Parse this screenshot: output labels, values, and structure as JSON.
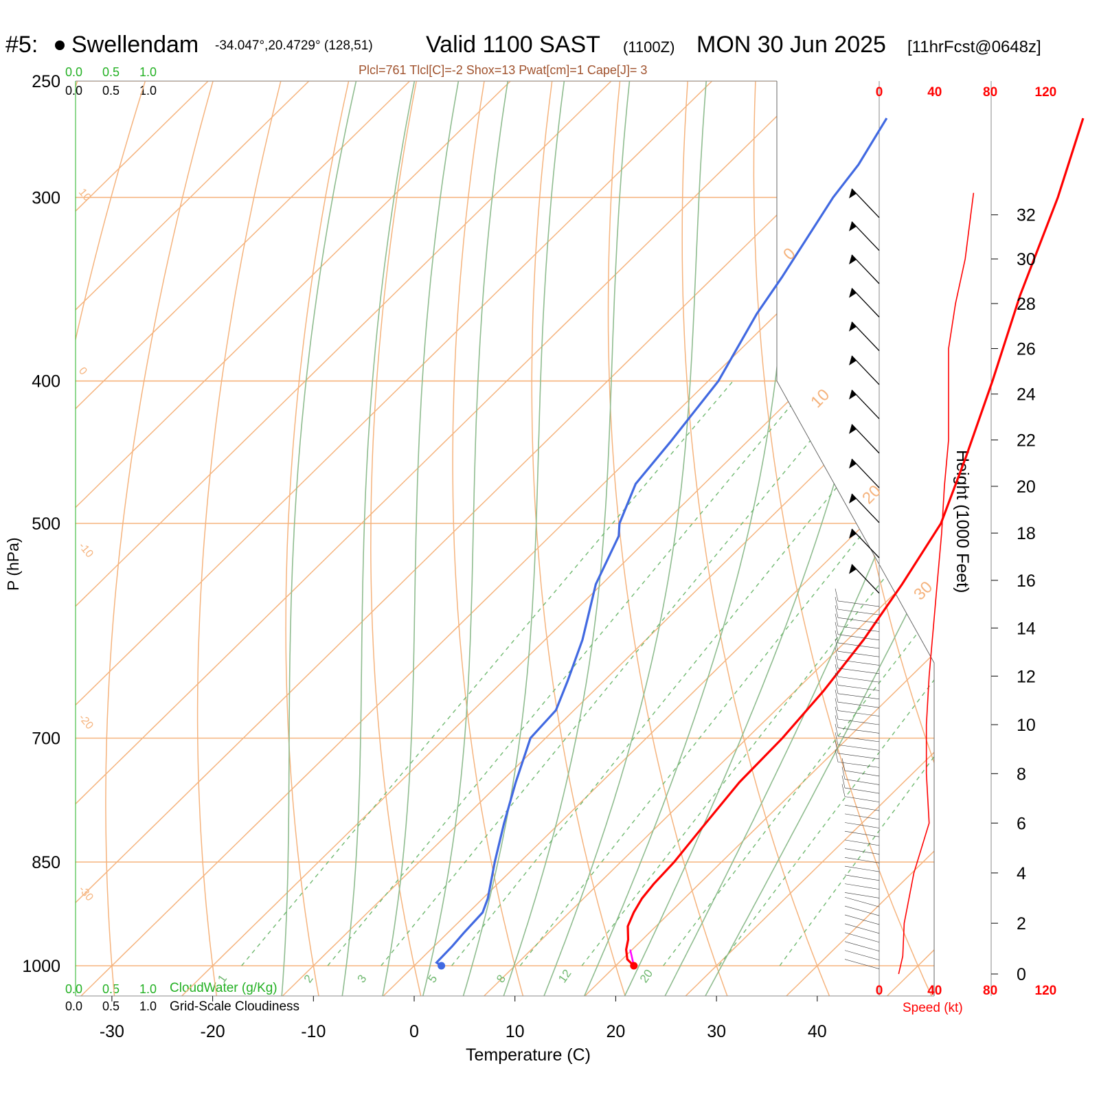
{
  "header": {
    "station_num": "#5:",
    "station_name": "Swellendam",
    "coords": "-34.047°,20.4729° (128,51)",
    "valid": "Valid 1100 SAST",
    "zulu": "(1100Z)",
    "date": "MON 30 Jun 2025",
    "fcst": "[11hrFcst@0648z]",
    "indices": "Plcl=761 Tlcl[C]=-2 Shox=13 Pwat[cm]=1 Cape[J]= 3"
  },
  "bottom_legend": {
    "cloud_scale": [
      "0.0",
      "0.5",
      "1.0"
    ],
    "cloud_water": "CloudWater (g/Kg)",
    "cloudiness": "Grid-Scale Cloudiness",
    "speed_label": "Speed (kt)"
  },
  "colors": {
    "isotherm": "#f5b37d",
    "dry_adiabat": "#f5b37d",
    "moist_adiabat": "#8fbc8f",
    "mixing_ratio": "#6fb86f",
    "temperature": "#ff0000",
    "dewpoint": "#4169e1",
    "parcel": "#ff00ff",
    "wind_speed": "#ff0000",
    "barbs": "#000000"
  },
  "chart_data": {
    "type": "skew-t",
    "xlabel": "Temperature (C)",
    "ylabel": "P (hPa)",
    "y2label": "Height (1000 Feet)",
    "x_ticks": [
      -30,
      -20,
      -10,
      0,
      10,
      20,
      30,
      40
    ],
    "p_levels": [
      250,
      300,
      400,
      500,
      700,
      850,
      1000
    ],
    "height_ticks": [
      0,
      2,
      4,
      6,
      8,
      10,
      12,
      14,
      16,
      18,
      20,
      22,
      24,
      26,
      28,
      30,
      32
    ],
    "wind_speed_ticks": [
      0,
      40,
      80,
      120
    ],
    "skewed_isotherm_labels": [
      {
        "label": "10",
        "side": "left"
      },
      {
        "label": "0",
        "side": "left"
      },
      {
        "label": "-10",
        "side": "left"
      },
      {
        "label": "-20",
        "side": "left"
      },
      {
        "label": "-30",
        "side": "left"
      },
      {
        "label": "0",
        "side": "right"
      },
      {
        "label": "10",
        "side": "right"
      },
      {
        "label": "20",
        "side": "right"
      },
      {
        "label": "30",
        "side": "right"
      }
    ],
    "mixing_ratio_labels": [
      "1",
      "2",
      "3",
      "5",
      "8",
      "12",
      "20"
    ],
    "temperature_profile": [
      [
        1000,
        21.8
      ],
      [
        990,
        20.5
      ],
      [
        975,
        19.4
      ],
      [
        960,
        18.6
      ],
      [
        940,
        17.2
      ],
      [
        920,
        16.4
      ],
      [
        900,
        15.8
      ],
      [
        880,
        15.5
      ],
      [
        850,
        15.3
      ],
      [
        800,
        14.5
      ],
      [
        750,
        13.7
      ],
      [
        700,
        13.5
      ],
      [
        650,
        12.8
      ],
      [
        600,
        11.6
      ],
      [
        550,
        9.8
      ],
      [
        500,
        7.5
      ],
      [
        450,
        3.2
      ],
      [
        400,
        -1.8
      ],
      [
        350,
        -7.7
      ],
      [
        300,
        -13.9
      ],
      [
        265,
        -19.4
      ]
    ],
    "dewpoint_profile": [
      [
        1000,
        2.7
      ],
      [
        995,
        1.9
      ],
      [
        970,
        1.8
      ],
      [
        950,
        1.6
      ],
      [
        920,
        1.4
      ],
      [
        900,
        0.5
      ],
      [
        850,
        -2.5
      ],
      [
        800,
        -5.5
      ],
      [
        750,
        -8.5
      ],
      [
        700,
        -11.5
      ],
      [
        670,
        -11.8
      ],
      [
        640,
        -13.6
      ],
      [
        600,
        -16.3
      ],
      [
        550,
        -20.6
      ],
      [
        510,
        -23.2
      ],
      [
        500,
        -24.4
      ],
      [
        470,
        -26.8
      ],
      [
        440,
        -27.6
      ],
      [
        400,
        -29.0
      ],
      [
        360,
        -32.0
      ],
      [
        340,
        -33.2
      ],
      [
        300,
        -36.2
      ],
      [
        285,
        -37.0
      ],
      [
        265,
        -38.9
      ]
    ],
    "wind_speed_profile_kt": [
      [
        0,
        14
      ],
      [
        0.7,
        17
      ],
      [
        2,
        18
      ],
      [
        4,
        25
      ],
      [
        6,
        36
      ],
      [
        8,
        34
      ],
      [
        10,
        34
      ],
      [
        12,
        36
      ],
      [
        14,
        39
      ],
      [
        16,
        42
      ],
      [
        18,
        45
      ],
      [
        20,
        47
      ],
      [
        22,
        50
      ],
      [
        24,
        50
      ],
      [
        26,
        50
      ],
      [
        28,
        55
      ],
      [
        30,
        62
      ],
      [
        32,
        66
      ],
      [
        33,
        68
      ]
    ],
    "wind_barbs_upper_kft": [
      [
        33,
        "NW",
        50
      ],
      [
        31.5,
        "NW",
        50
      ],
      [
        30,
        "NW",
        50
      ],
      [
        28.5,
        "NW",
        50
      ],
      [
        27,
        "NW",
        50
      ],
      [
        25.5,
        "NW",
        50
      ],
      [
        24,
        "NW",
        50
      ],
      [
        22.5,
        "NW",
        50
      ],
      [
        21,
        "NW",
        50
      ],
      [
        19.5,
        "NW",
        50
      ],
      [
        18,
        "NW",
        50
      ],
      [
        16.5,
        "NW",
        50
      ]
    ]
  }
}
